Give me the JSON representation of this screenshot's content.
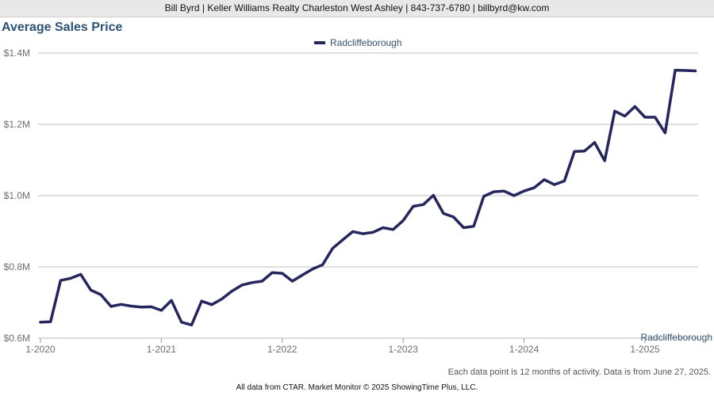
{
  "header": {
    "text": "Bill Byrd | Keller Williams Realty Charleston West Ashley | 843-737-6780 | billbyrd@kw.com"
  },
  "chart_data": {
    "type": "line",
    "title": "Average Sales Price",
    "xlabel": "",
    "ylabel": "",
    "ylim": [
      0.6,
      1.4
    ],
    "yticks": [
      0.6,
      0.8,
      1.0,
      1.2,
      1.4
    ],
    "ytick_labels": [
      "$0.6M",
      "$0.8M",
      "$1.0M",
      "$1.2M",
      "$1.4M"
    ],
    "xtick_labels": [
      "1-2020",
      "1-2021",
      "1-2022",
      "1-2023",
      "1-2024",
      "1-2025"
    ],
    "grid": true,
    "legend_position": "top-center",
    "axis_corner_label": "Radcliffeborough",
    "line_color": "#25265e",
    "series": [
      {
        "name": "Radcliffeborough",
        "x": [
          "1-2020",
          "2-2020",
          "3-2020",
          "4-2020",
          "5-2020",
          "6-2020",
          "7-2020",
          "8-2020",
          "9-2020",
          "10-2020",
          "11-2020",
          "12-2020",
          "1-2021",
          "2-2021",
          "3-2021",
          "4-2021",
          "5-2021",
          "6-2021",
          "7-2021",
          "8-2021",
          "9-2021",
          "10-2021",
          "11-2021",
          "12-2021",
          "1-2022",
          "2-2022",
          "3-2022",
          "4-2022",
          "5-2022",
          "6-2022",
          "7-2022",
          "8-2022",
          "9-2022",
          "10-2022",
          "11-2022",
          "12-2022",
          "1-2023",
          "2-2023",
          "3-2023",
          "4-2023",
          "5-2023",
          "6-2023",
          "7-2023",
          "8-2023",
          "9-2023",
          "10-2023",
          "11-2023",
          "12-2023",
          "1-2024",
          "2-2024",
          "3-2024",
          "4-2024",
          "5-2024",
          "6-2024",
          "7-2024",
          "8-2024",
          "9-2024",
          "10-2024",
          "11-2024",
          "12-2024",
          "1-2025",
          "2-2025",
          "3-2025",
          "4-2025",
          "5-2025",
          "6-2025"
        ],
        "values": [
          0.645,
          0.646,
          0.762,
          0.768,
          0.779,
          0.735,
          0.722,
          0.689,
          0.695,
          0.69,
          0.687,
          0.688,
          0.678,
          0.706,
          0.645,
          0.637,
          0.704,
          0.694,
          0.71,
          0.732,
          0.749,
          0.756,
          0.76,
          0.784,
          0.782,
          0.76,
          0.777,
          0.794,
          0.806,
          0.852,
          0.876,
          0.899,
          0.893,
          0.897,
          0.91,
          0.905,
          0.93,
          0.97,
          0.975,
          1.001,
          0.95,
          0.94,
          0.91,
          0.914,
          0.998,
          1.011,
          1.013,
          1.0,
          1.013,
          1.022,
          1.045,
          1.031,
          1.041,
          1.124,
          1.125,
          1.149,
          1.098,
          1.237,
          1.223,
          1.25,
          1.22,
          1.22,
          1.176,
          1.352,
          1.351,
          1.35
        ]
      }
    ]
  },
  "note": "Each data point is 12 months of activity. Data is from June 27, 2025.",
  "footer": "All data from CTAR. Market Monitor © 2025 ShowingTime Plus, LLC."
}
